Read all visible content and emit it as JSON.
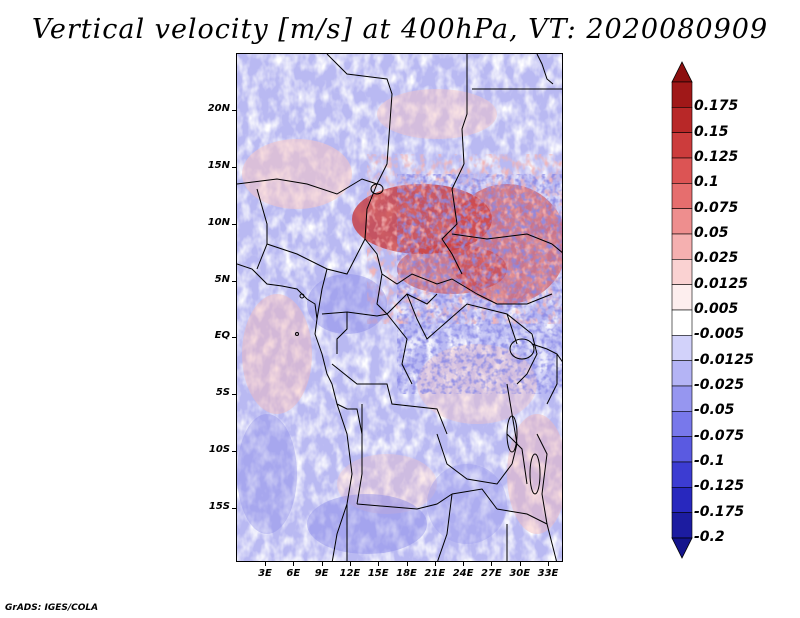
{
  "title": "Vertical velocity [m/s] at 400hPa, VT: 2020080909",
  "credit": "GrADS: IGES/COLA",
  "map": {
    "lat_ticks": [
      "20N",
      "15N",
      "10N",
      "5N",
      "EQ",
      "5S",
      "10S",
      "15S"
    ],
    "lon_ticks": [
      "3E",
      "6E",
      "9E",
      "12E",
      "15E",
      "18E",
      "21E",
      "24E",
      "27E",
      "30E",
      "33E"
    ]
  },
  "colorbar": {
    "labels": [
      "0.175",
      "0.15",
      "0.125",
      "0.1",
      "0.075",
      "0.05",
      "0.025",
      "0.0125",
      "0.005",
      "-0.005",
      "-0.0125",
      "-0.025",
      "-0.05",
      "-0.075",
      "-0.1",
      "-0.125",
      "-0.175",
      "-0.2"
    ],
    "colors": [
      "#a01818",
      "#b82828",
      "#cc3c3c",
      "#dc5454",
      "#e66e6e",
      "#ee8e8e",
      "#f5b0b0",
      "#fad2d2",
      "#fdeeee",
      "#ffffff",
      "#d2d2fa",
      "#b4b4f5",
      "#9696f0",
      "#7878eb",
      "#5a5ae1",
      "#3c3cd2",
      "#2828be",
      "#1c1ca0"
    ],
    "top_arrow_color": "#8c1010",
    "bottom_arrow_color": "#14148c"
  }
}
